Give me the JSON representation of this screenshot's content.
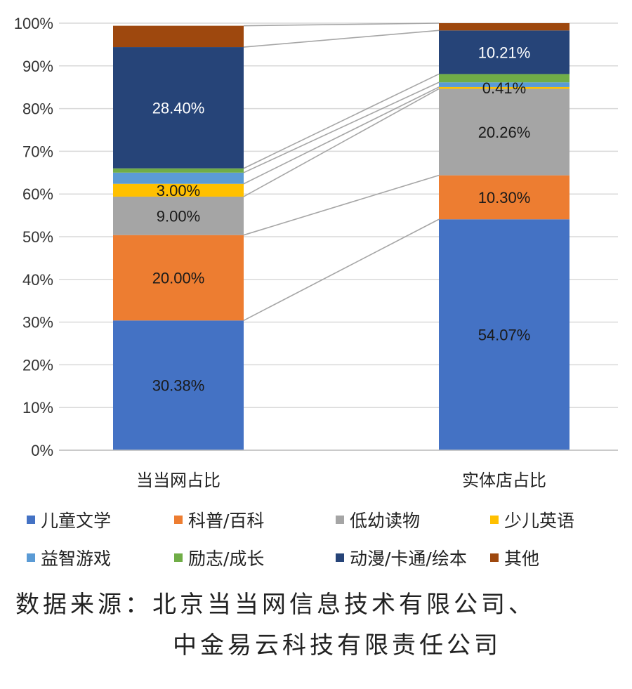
{
  "chart_data": {
    "type": "bar",
    "stacked": true,
    "percent_stacked": true,
    "categories": [
      "当当网占比",
      "实体店占比"
    ],
    "ylim": [
      0,
      100
    ],
    "yticks": [
      "0%",
      "10%",
      "20%",
      "30%",
      "40%",
      "50%",
      "60%",
      "70%",
      "80%",
      "90%",
      "100%"
    ],
    "grid": true,
    "legend_position": "bottom",
    "series": [
      {
        "name": "儿童文学",
        "color": "#4472c4",
        "values": [
          30.38,
          54.07
        ],
        "labels": [
          "30.38%",
          "54.07%"
        ],
        "label_color": "#1a1a1a"
      },
      {
        "name": "科普/百科",
        "color": "#ed7d31",
        "values": [
          20.0,
          10.3
        ],
        "labels": [
          "20.00%",
          "10.30%"
        ],
        "label_color": "#1a1a1a"
      },
      {
        "name": "低幼读物",
        "color": "#a5a5a5",
        "values": [
          9.0,
          20.26
        ],
        "labels": [
          "9.00%",
          "20.26%"
        ],
        "label_color": "#1a1a1a"
      },
      {
        "name": "少儿英语",
        "color": "#ffc000",
        "values": [
          3.0,
          0.41
        ],
        "labels": [
          "3.00%",
          "0.41%"
        ],
        "label_color": "#1a1a1a"
      },
      {
        "name": "益智游戏",
        "color": "#5b9bd5",
        "values": [
          2.62,
          1.1
        ],
        "labels": [
          "",
          ""
        ],
        "label_color": "#1a1a1a"
      },
      {
        "name": "励志/成长",
        "color": "#70ad47",
        "values": [
          1.0,
          1.95
        ],
        "labels": [
          "",
          ""
        ],
        "label_color": "#1a1a1a"
      },
      {
        "name": "动漫/卡通/绘本",
        "color": "#264478",
        "values": [
          28.4,
          10.21
        ],
        "labels": [
          "28.40%",
          "10.21%"
        ],
        "label_color": "#ffffff"
      },
      {
        "name": "其他",
        "color": "#9e480e",
        "values": [
          5.0,
          1.7
        ],
        "labels": [
          "",
          ""
        ],
        "label_color": "#ffffff"
      }
    ]
  },
  "source": {
    "line1": "数据来源：北京当当网信息技术有限公司、",
    "line2": "中金易云科技有限责任公司"
  }
}
